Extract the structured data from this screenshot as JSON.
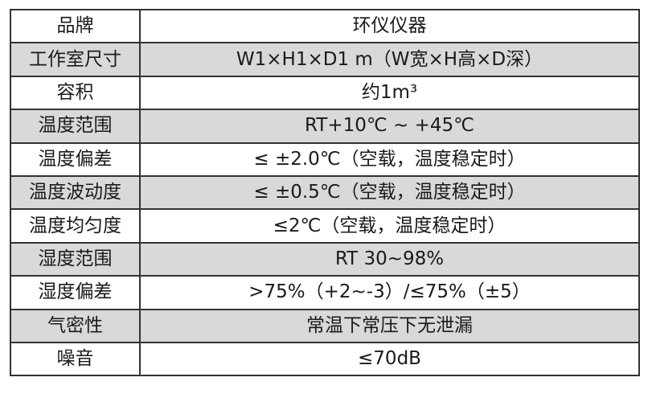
{
  "table": {
    "rows": [
      {
        "label": "品牌",
        "value": "环仪仪器"
      },
      {
        "label": "工作室尺寸",
        "value": "W1×H1×D1 m（W宽×H高×D深）"
      },
      {
        "label": "容积",
        "value": "约1m³"
      },
      {
        "label": "温度范围",
        "value": "RT+10℃ ~ +45℃"
      },
      {
        "label": "温度偏差",
        "value": "≤ ±2.0℃（空载，温度稳定时）"
      },
      {
        "label": "温度波动度",
        "value": "≤ ±0.5℃（空载，温度稳定时）"
      },
      {
        "label": "温度均匀度",
        "value": "≤2℃（空载，温度稳定时）"
      },
      {
        "label": "湿度范围",
        "value": "RT 30~98%"
      },
      {
        "label": "湿度偏差",
        "value": ">75%（+2~-3）/≤75%（±5）"
      },
      {
        "label": "气密性",
        "value": "常温下常压下无泄漏"
      },
      {
        "label": "噪音",
        "value": "≤70dB"
      }
    ],
    "colors": {
      "alt_row": "#d9d9d9",
      "border": "#333333"
    }
  }
}
